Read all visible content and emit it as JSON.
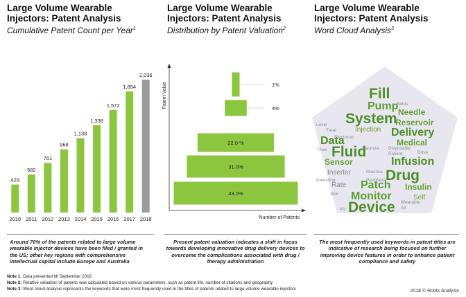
{
  "panels": [
    {
      "title": "Large Volume Wearable Injectors: Patent Analysis",
      "subtitle": "Cumulative Patent Count per Year",
      "sup": "1"
    },
    {
      "title": "Large Volume Wearable Injectors: Patent Analysis",
      "subtitle": "Distribution by Patent Valuation",
      "sup": "2"
    },
    {
      "title": "Large Volume Wearable Injectors: Patent Analysis",
      "subtitle": "Word Cloud Analysis",
      "sup": "3"
    }
  ],
  "footers": [
    "Around 70% of the patents related to large volume wearable injector devices have been filed / granted in the US; other key regions with comprehensive intellectual capital include Europe and Australia",
    "Present patent valuation indicates a shift in focus towards developing innovative drug delivery devices to overcome the complications associated with drug / therapy administration",
    "The most frequently used keywords in patent titles are indicative of research being focused on further improving device features in order to enhance patient compliance and safety"
  ],
  "notes": [
    {
      "label": "Note 1:",
      "text": "Data presented till September 2018"
    },
    {
      "label": "Note 2:",
      "text": "Relative valuation of patents was calculated based on various parameters, such as patent life, number of citations and geography"
    },
    {
      "label": "Note 3:",
      "text": "Word cloud analysis represents the keywords that were most frequently used in the titles of patents related to large volume wearable injectors"
    }
  ],
  "credit": "2018 © Roots Analysis",
  "colors": {
    "green": "#8cc63f",
    "gray": "#9b9b9b"
  },
  "chart_data": [
    {
      "type": "bar",
      "categories": [
        "2010",
        "2011",
        "2012",
        "2013",
        "2014",
        "2015",
        "2016",
        "2017",
        "2018"
      ],
      "values": [
        429,
        582,
        761,
        968,
        1138,
        1338,
        1572,
        1854,
        2036
      ],
      "value_labels": [
        "429",
        "582",
        "761",
        "968",
        "1,138",
        "1,338",
        "1,572",
        "1,854",
        "2,036"
      ],
      "highlight_last_color": "gray",
      "ylim": [
        0,
        2100
      ]
    },
    {
      "type": "bar",
      "orientation": "horizontal-pyramid",
      "ylabel": "Patent Value",
      "xlabel": "Number of Patents",
      "tiers": [
        {
          "label": "1%",
          "value": 1
        },
        {
          "label": "4%",
          "value": 4
        },
        {
          "label": "22.0 %",
          "value": 22.0
        },
        {
          "label": "31.0%",
          "value": 31.0
        },
        {
          "label": "43.0%",
          "value": 43.0
        }
      ]
    },
    {
      "type": "wordcloud",
      "shape": "pentagon",
      "words": [
        {
          "text": "Fill",
          "weight": 5
        },
        {
          "text": "Pump",
          "weight": 4
        },
        {
          "text": "System",
          "weight": 5
        },
        {
          "text": "Needle",
          "weight": 3
        },
        {
          "text": "Reservoir",
          "weight": 3
        },
        {
          "text": "Delivery",
          "weight": 4
        },
        {
          "text": "Medical",
          "weight": 3
        },
        {
          "text": "Injection",
          "weight": 2
        },
        {
          "text": "Data",
          "weight": 4
        },
        {
          "text": "Fluid",
          "weight": 5
        },
        {
          "text": "Sensor",
          "weight": 3
        },
        {
          "text": "Infusion",
          "weight": 4
        },
        {
          "text": "Drug",
          "weight": 5
        },
        {
          "text": "Patch",
          "weight": 4
        },
        {
          "text": "Monitor",
          "weight": 4
        },
        {
          "text": "Insulin",
          "weight": 3
        },
        {
          "text": "Device",
          "weight": 5
        },
        {
          "text": "Inserter",
          "weight": 2
        },
        {
          "text": "Rate",
          "weight": 2
        },
        {
          "text": "Skin",
          "weight": 1
        },
        {
          "text": "Self",
          "weight": 2
        },
        {
          "text": "Glucose",
          "weight": 1
        },
        {
          "text": "Patient",
          "weight": 1
        },
        {
          "text": "Wearable",
          "weight": 1
        },
        {
          "text": "Air",
          "weight": 1
        },
        {
          "text": "Flow",
          "weight": 1
        },
        {
          "text": "Drive",
          "weight": 1
        },
        {
          "text": "Treat",
          "weight": 1
        },
        {
          "text": "Bolus",
          "weight": 1
        },
        {
          "text": "Kit",
          "weight": 1
        },
        {
          "text": "Disposable",
          "weight": 1
        },
        {
          "text": "Peripheral",
          "weight": 1
        },
        {
          "text": "Level",
          "weight": 1
        },
        {
          "text": "Electronic",
          "weight": 1
        },
        {
          "text": "Detecting",
          "weight": 1
        },
        {
          "text": "Cannula",
          "weight": 1
        }
      ]
    }
  ]
}
